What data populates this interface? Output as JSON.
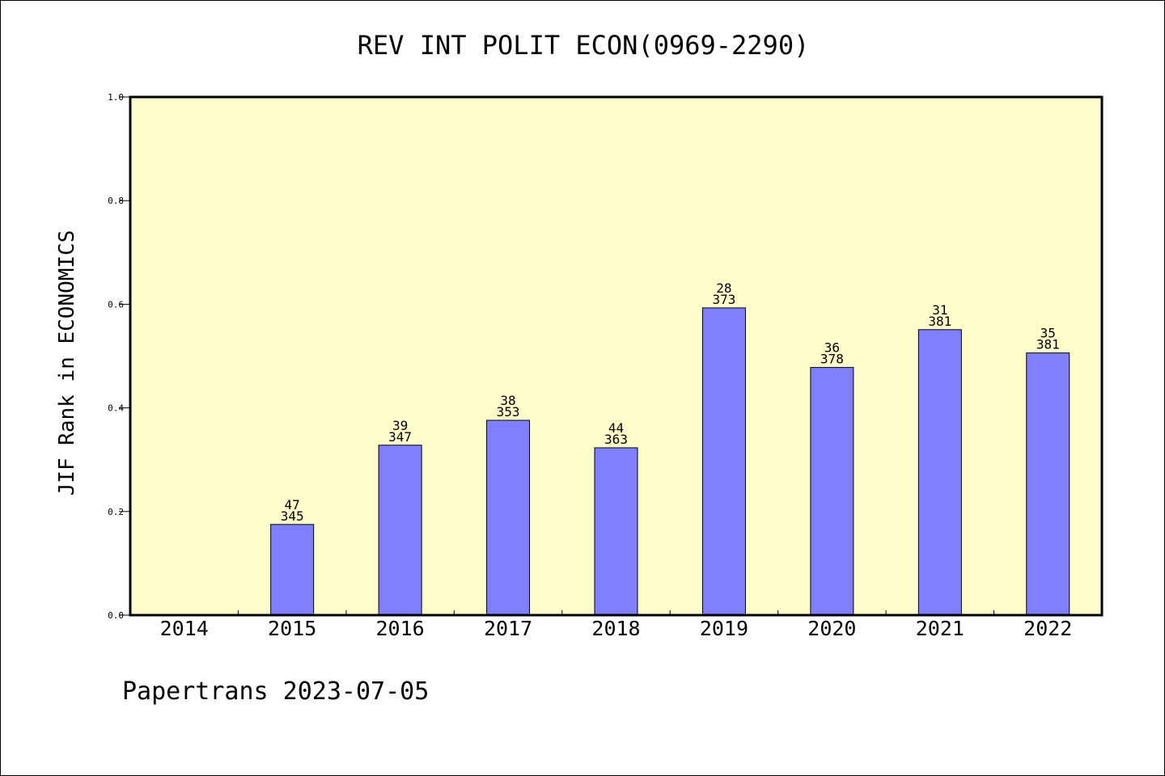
{
  "chart_data": {
    "type": "bar",
    "title": "REV INT POLIT ECON(0969-2290)",
    "xlabel": "",
    "ylabel": "JIF Rank in ECONOMICS",
    "ylim": [
      0,
      1.0
    ],
    "yticks": [
      "0.0",
      "0.2",
      "0.4",
      "0.6",
      "0.8",
      "1.0"
    ],
    "categories": [
      "2014",
      "2015",
      "2016",
      "2017",
      "2018",
      "2019",
      "2020",
      "2021",
      "2022"
    ],
    "values": [
      null,
      0.175,
      0.328,
      0.376,
      0.323,
      0.593,
      0.478,
      0.551,
      0.506
    ],
    "ranks": [
      null,
      "47",
      "39",
      "38",
      "44",
      "28",
      "36",
      "31",
      "35"
    ],
    "totals": [
      null,
      "345",
      "347",
      "353",
      "363",
      "373",
      "378",
      "381",
      "381"
    ],
    "grid": false,
    "legend": "none"
  },
  "colors": {
    "plot_background": "#ffffcc",
    "bar_fill": "#8080ff",
    "bar_stroke": "#000000"
  },
  "footer": "Papertrans 2023-07-05"
}
